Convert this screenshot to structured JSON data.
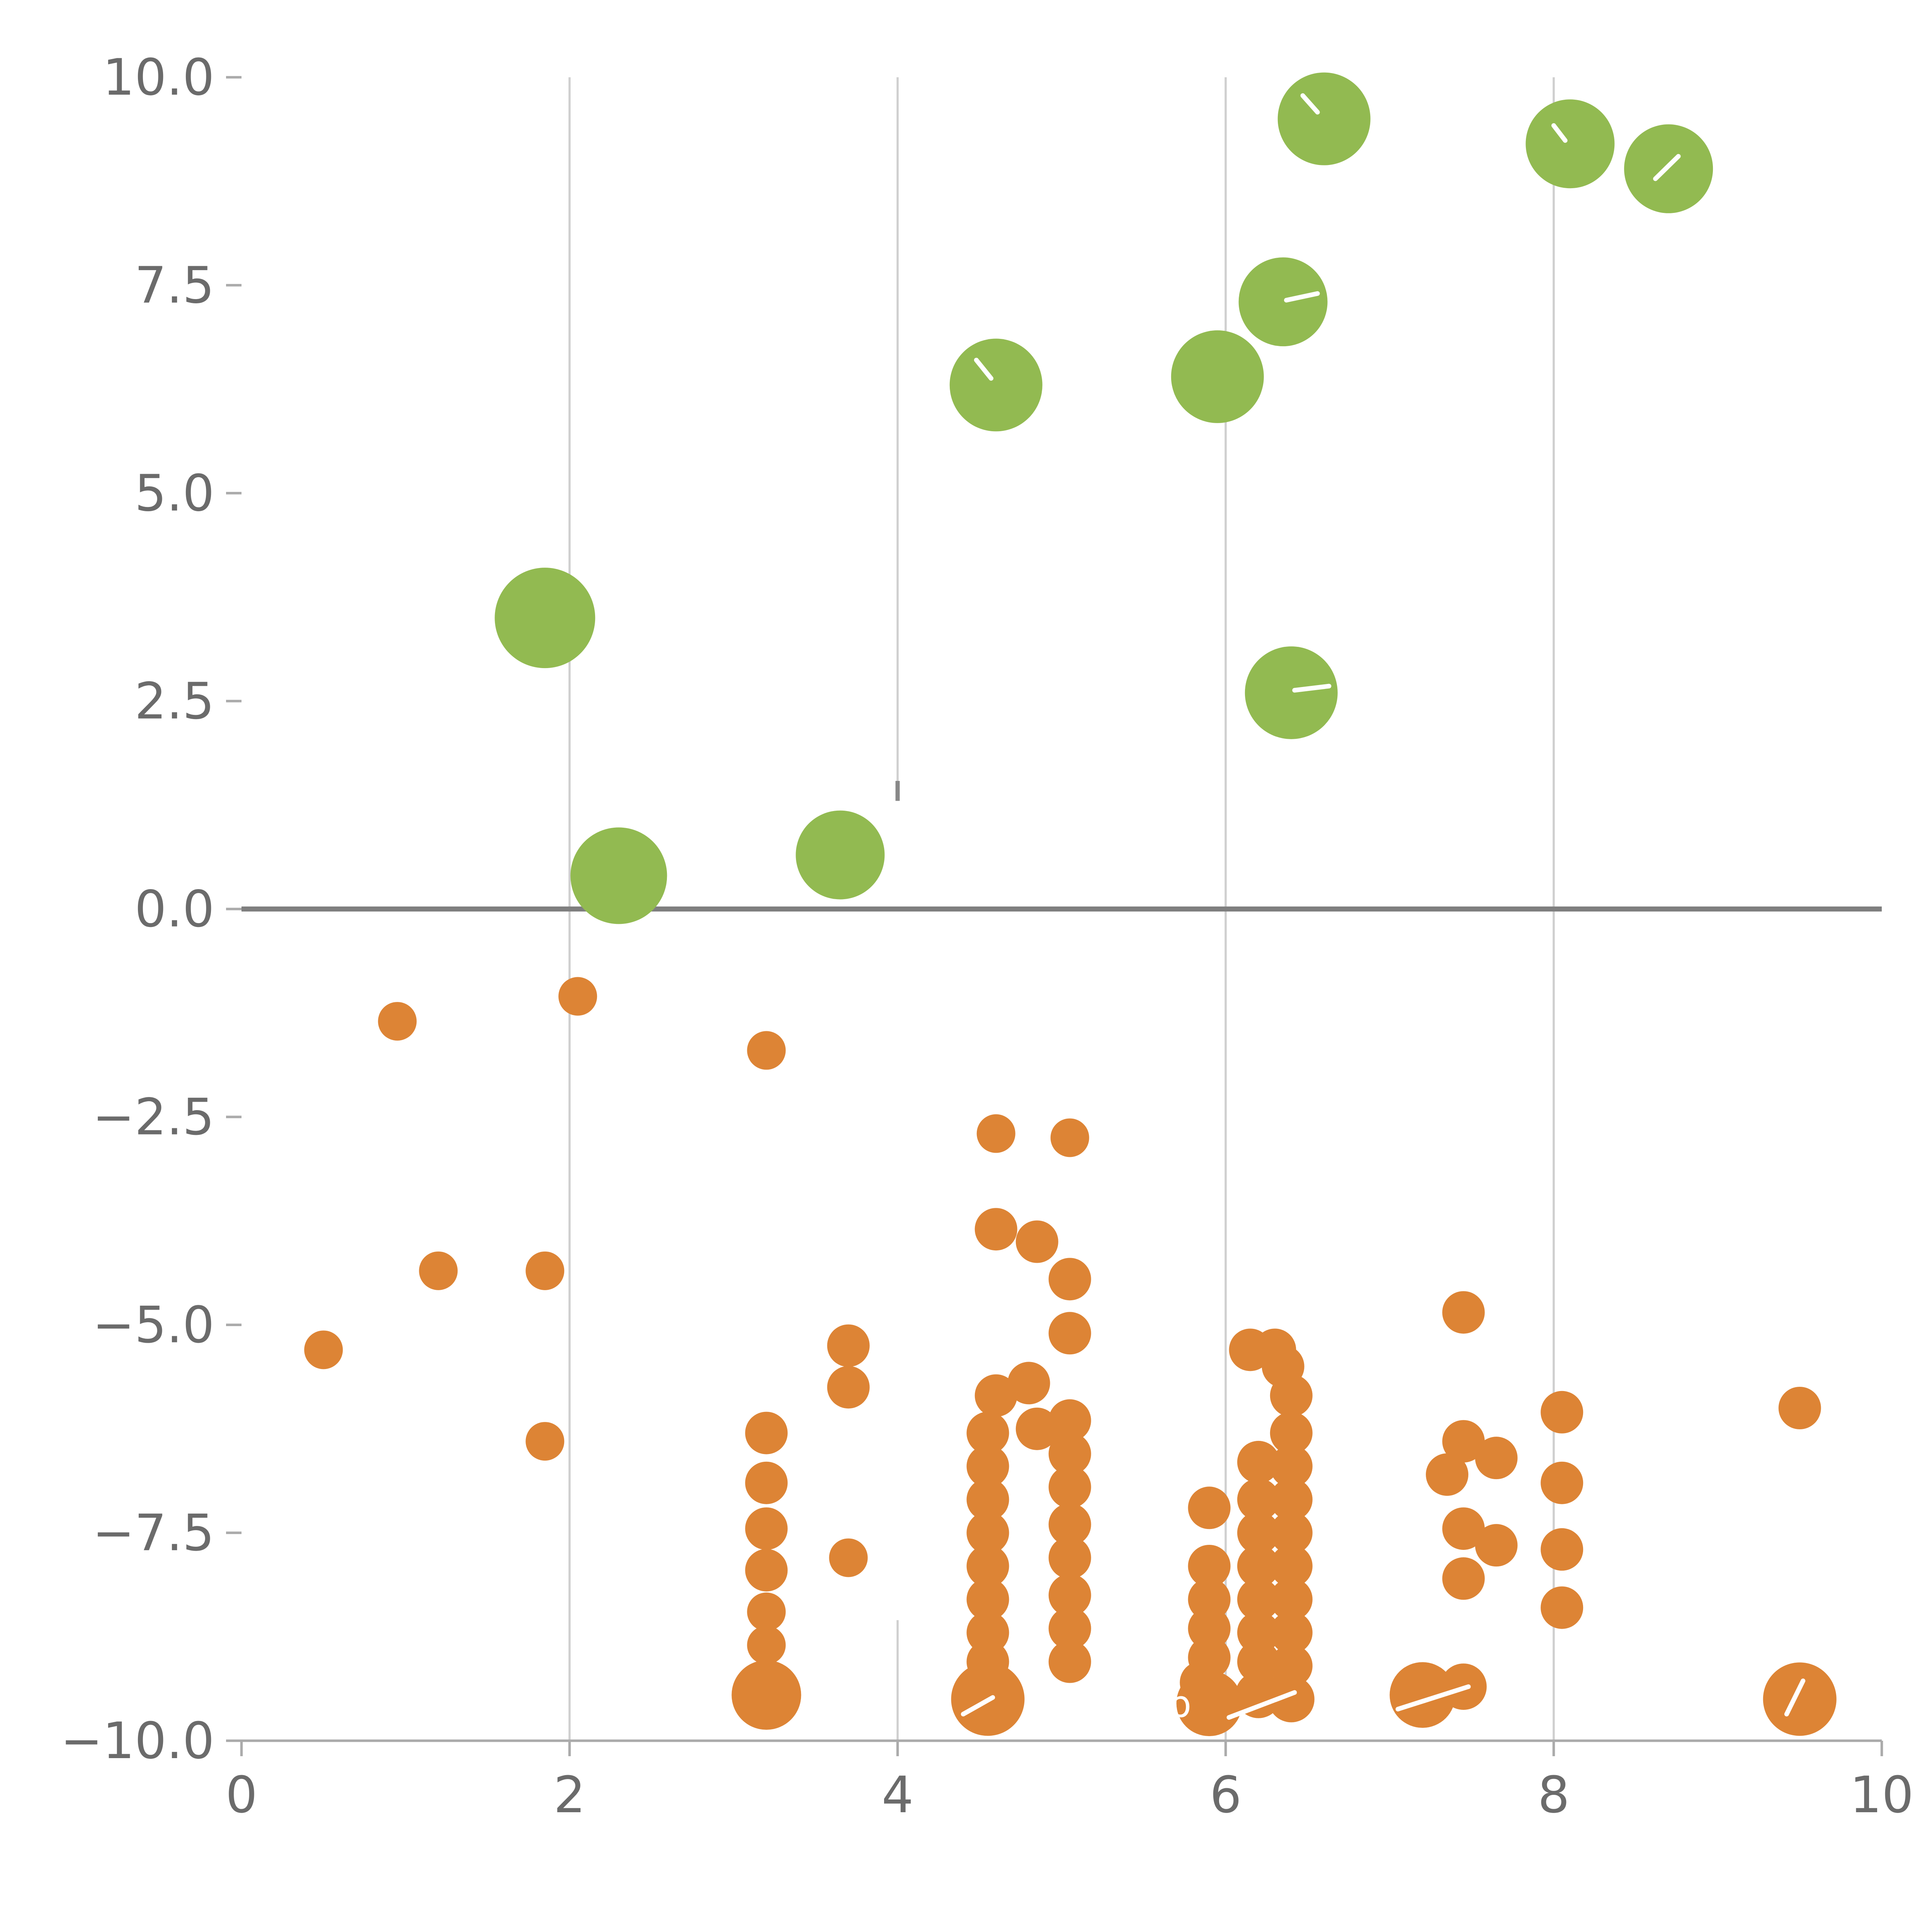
{
  "chart_data": {
    "type": "scatter",
    "title": "",
    "xlabel": "",
    "ylabel": "",
    "xlim": [
      0,
      10
    ],
    "ylim": [
      -10,
      10
    ],
    "grid": "vertical-only",
    "grid_x": [
      2,
      4,
      6,
      8
    ],
    "zero_line": true,
    "legend": "none",
    "x_ticks": [
      {
        "v": 0,
        "label": "0"
      },
      {
        "v": 2,
        "label": "2"
      },
      {
        "v": 4,
        "label": "4"
      },
      {
        "v": 6,
        "label": "6"
      },
      {
        "v": 8,
        "label": "8"
      },
      {
        "v": 10,
        "label": "10"
      }
    ],
    "y_ticks": [
      {
        "v": 10,
        "label": "10.0"
      },
      {
        "v": 7.5,
        "label": "7.5"
      },
      {
        "v": 5,
        "label": "5.0"
      },
      {
        "v": 2.5,
        "label": "2.5"
      },
      {
        "v": 0,
        "label": "0.0"
      },
      {
        "v": -2.5,
        "label": "−2.5"
      },
      {
        "v": -5,
        "label": "−5.0"
      },
      {
        "v": -7.5,
        "label": "−7.5"
      },
      {
        "v": -10,
        "label": "−10.0"
      }
    ],
    "style": {
      "grid_color": "#cfcfcf",
      "zero_line_color": "#7f7f7f",
      "spine_color": "#ababab",
      "tick_text_color": "#6b6b6b",
      "mark_white": "#ffffff",
      "mark_dark": "#888888"
    },
    "series": [
      {
        "name": "positive-cluster-green",
        "color": "#92ba51",
        "points": [
          [
            6.6,
            9.5,
            24
          ],
          [
            8.1,
            9.2,
            23
          ],
          [
            8.7,
            8.9,
            23
          ],
          [
            6.35,
            7.3,
            23
          ],
          [
            5.95,
            6.4,
            24
          ],
          [
            4.6,
            6.3,
            24
          ],
          [
            1.85,
            3.5,
            26
          ],
          [
            6.4,
            2.6,
            24
          ],
          [
            2.3,
            0.4,
            25
          ],
          [
            3.65,
            0.65,
            23
          ]
        ]
      },
      {
        "name": "negative-cluster-orange",
        "color": "#dd8435",
        "points": [
          [
            0.5,
            -5.3,
            10
          ],
          [
            0.95,
            -1.35,
            10
          ],
          [
            1.2,
            -4.35,
            10
          ],
          [
            1.85,
            -4.35,
            10
          ],
          [
            1.85,
            -6.4,
            10
          ],
          [
            2.05,
            -1.05,
            10
          ],
          [
            3.2,
            -1.7,
            10
          ],
          [
            3.2,
            -6.3,
            11
          ],
          [
            3.2,
            -6.9,
            11
          ],
          [
            3.2,
            -7.45,
            11
          ],
          [
            3.2,
            -7.95,
            11
          ],
          [
            3.2,
            -8.45,
            10
          ],
          [
            3.2,
            -8.85,
            10
          ],
          [
            3.2,
            -9.45,
            18
          ],
          [
            3.7,
            -5.25,
            11
          ],
          [
            3.7,
            -5.75,
            11
          ],
          [
            3.7,
            -7.8,
            10
          ],
          [
            4.6,
            -2.7,
            10
          ],
          [
            5.05,
            -2.75,
            10
          ],
          [
            4.6,
            -3.85,
            11
          ],
          [
            4.85,
            -4.0,
            11
          ],
          [
            5.05,
            -4.45,
            11
          ],
          [
            5.05,
            -5.1,
            11
          ],
          [
            4.8,
            -5.7,
            11
          ],
          [
            4.6,
            -5.85,
            11
          ],
          [
            4.55,
            -6.3,
            11
          ],
          [
            4.85,
            -6.25,
            11
          ],
          [
            4.55,
            -6.7,
            11
          ],
          [
            4.55,
            -7.1,
            11
          ],
          [
            4.55,
            -7.5,
            11
          ],
          [
            4.55,
            -7.9,
            11
          ],
          [
            4.55,
            -8.3,
            11
          ],
          [
            4.55,
            -8.7,
            11
          ],
          [
            4.55,
            -9.05,
            11
          ],
          [
            4.55,
            -9.5,
            19
          ],
          [
            5.05,
            -6.15,
            11
          ],
          [
            5.05,
            -6.55,
            11
          ],
          [
            5.05,
            -6.95,
            11
          ],
          [
            5.05,
            -7.4,
            11
          ],
          [
            5.05,
            -7.8,
            11
          ],
          [
            5.05,
            -8.25,
            11
          ],
          [
            5.05,
            -8.65,
            11
          ],
          [
            5.05,
            -9.05,
            11
          ],
          [
            5.9,
            -7.2,
            11
          ],
          [
            5.9,
            -7.9,
            11
          ],
          [
            5.9,
            -8.3,
            11
          ],
          [
            5.9,
            -8.65,
            11
          ],
          [
            5.9,
            -9.0,
            11
          ],
          [
            5.85,
            -9.3,
            11
          ],
          [
            5.9,
            -9.55,
            17
          ],
          [
            6.15,
            -5.3,
            11
          ],
          [
            6.3,
            -5.3,
            11
          ],
          [
            6.35,
            -5.5,
            11
          ],
          [
            6.2,
            -6.65,
            11
          ],
          [
            6.2,
            -7.1,
            11
          ],
          [
            6.2,
            -7.5,
            11
          ],
          [
            6.2,
            -7.9,
            11
          ],
          [
            6.2,
            -8.3,
            11
          ],
          [
            6.2,
            -8.7,
            11
          ],
          [
            6.2,
            -9.05,
            11
          ],
          [
            6.2,
            -9.45,
            12
          ],
          [
            6.4,
            -5.85,
            11
          ],
          [
            6.4,
            -6.3,
            11
          ],
          [
            6.4,
            -6.7,
            11
          ],
          [
            6.4,
            -7.1,
            11
          ],
          [
            6.4,
            -7.5,
            11
          ],
          [
            6.4,
            -7.9,
            11
          ],
          [
            6.4,
            -8.3,
            11
          ],
          [
            6.4,
            -8.7,
            11
          ],
          [
            6.4,
            -9.1,
            11
          ],
          [
            6.4,
            -9.5,
            12
          ],
          [
            7.45,
            -4.85,
            11
          ],
          [
            7.45,
            -6.4,
            11
          ],
          [
            7.35,
            -6.8,
            11
          ],
          [
            7.65,
            -6.6,
            11
          ],
          [
            7.45,
            -7.45,
            11
          ],
          [
            7.65,
            -7.65,
            11
          ],
          [
            7.45,
            -8.05,
            11
          ],
          [
            7.2,
            -9.45,
            17
          ],
          [
            7.45,
            -9.35,
            12
          ],
          [
            8.05,
            -6.05,
            11
          ],
          [
            8.05,
            -6.9,
            11
          ],
          [
            8.05,
            -7.7,
            11
          ],
          [
            8.05,
            -8.4,
            11
          ],
          [
            9.5,
            -6.0,
            11
          ],
          [
            9.5,
            -9.5,
            19
          ]
        ]
      }
    ],
    "white_line_behind": [
      {
        "x1": 4,
        "y1": 1.3,
        "x2": 4,
        "y2": -8.55,
        "w": 3
      }
    ],
    "dark_marks": [
      {
        "x1": 4,
        "y1": 1.54,
        "x2": 4,
        "y2": 1.3,
        "w": 2.2
      }
    ],
    "white_marks": [
      {
        "x1": 6.47,
        "y1": 9.78,
        "x2": 6.56,
        "y2": 9.58
      },
      {
        "x1": 8.0,
        "y1": 9.42,
        "x2": 8.07,
        "y2": 9.24
      },
      {
        "x1": 8.76,
        "y1": 9.05,
        "x2": 8.62,
        "y2": 8.78
      },
      {
        "x1": 6.37,
        "y1": 7.32,
        "x2": 6.56,
        "y2": 7.4
      },
      {
        "x1": 4.48,
        "y1": 6.6,
        "x2": 4.57,
        "y2": 6.38
      },
      {
        "x1": 6.42,
        "y1": 2.63,
        "x2": 6.63,
        "y2": 2.68
      },
      {
        "x1": 4.4,
        "y1": -9.68,
        "x2": 4.58,
        "y2": -9.48
      },
      {
        "x1": 6.02,
        "y1": -9.72,
        "x2": 6.42,
        "y2": -9.42
      },
      {
        "x1": 7.05,
        "y1": -9.62,
        "x2": 7.48,
        "y2": -9.35
      },
      {
        "x1": 9.42,
        "y1": -9.68,
        "x2": 9.52,
        "y2": -9.28
      }
    ],
    "annotations": [
      {
        "text": "b",
        "x": 5.72,
        "y": -9.55,
        "color": "#ffffff",
        "size": 19
      }
    ]
  }
}
